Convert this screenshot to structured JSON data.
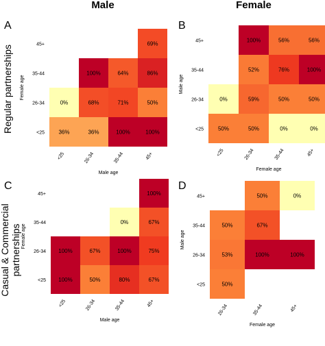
{
  "header": {
    "left": "Male",
    "right": "Female"
  },
  "row_labels": {
    "top": "Regular partnerships",
    "bottom_line1": "Casual & Commercial",
    "bottom_line2": "partnerships"
  },
  "colorscale": {
    "low": "#ffffb2",
    "mid_low": "#fd8d3c",
    "mid_high": "#f03b20",
    "high": "#bd0026"
  },
  "chart_data": [
    {
      "type": "heatmap",
      "panel": "A",
      "xlabel": "Male age",
      "ylabel": "Female age",
      "x_categories": [
        "<25",
        "26-34",
        "35-44",
        "45+"
      ],
      "y_categories": [
        "<25",
        "26-34",
        "35-44",
        "45+"
      ],
      "cells": [
        {
          "x": "<25",
          "y": "<25",
          "value": 36
        },
        {
          "x": "26-34",
          "y": "<25",
          "value": 36
        },
        {
          "x": "35-44",
          "y": "<25",
          "value": 100
        },
        {
          "x": "45+",
          "y": "<25",
          "value": 100
        },
        {
          "x": "<25",
          "y": "26-34",
          "value": 0
        },
        {
          "x": "26-34",
          "y": "26-34",
          "value": 68
        },
        {
          "x": "35-44",
          "y": "26-34",
          "value": 71
        },
        {
          "x": "45+",
          "y": "26-34",
          "value": 50
        },
        {
          "x": "26-34",
          "y": "35-44",
          "value": 100
        },
        {
          "x": "35-44",
          "y": "35-44",
          "value": 64
        },
        {
          "x": "45+",
          "y": "35-44",
          "value": 86
        },
        {
          "x": "45+",
          "y": "45+",
          "value": 69
        }
      ]
    },
    {
      "type": "heatmap",
      "panel": "B",
      "xlabel": "Female age",
      "ylabel": "Male age",
      "x_categories": [
        "<25",
        "26-34",
        "35-44",
        "45+"
      ],
      "y_categories": [
        "<25",
        "26-34",
        "35-44",
        "45+"
      ],
      "cells": [
        {
          "x": "<25",
          "y": "<25",
          "value": 50
        },
        {
          "x": "26-34",
          "y": "<25",
          "value": 50
        },
        {
          "x": "35-44",
          "y": "<25",
          "value": 0
        },
        {
          "x": "45+",
          "y": "<25",
          "value": 0
        },
        {
          "x": "<25",
          "y": "26-34",
          "value": 0
        },
        {
          "x": "26-34",
          "y": "26-34",
          "value": 59
        },
        {
          "x": "35-44",
          "y": "26-34",
          "value": 50
        },
        {
          "x": "45+",
          "y": "26-34",
          "value": 50
        },
        {
          "x": "26-34",
          "y": "35-44",
          "value": 52
        },
        {
          "x": "35-44",
          "y": "35-44",
          "value": 76
        },
        {
          "x": "45+",
          "y": "35-44",
          "value": 100
        },
        {
          "x": "26-34",
          "y": "45+",
          "value": 100
        },
        {
          "x": "35-44",
          "y": "45+",
          "value": 56
        },
        {
          "x": "45+",
          "y": "45+",
          "value": 56
        }
      ]
    },
    {
      "type": "heatmap",
      "panel": "C",
      "xlabel": "Male age",
      "ylabel": "Female age",
      "x_categories": [
        "<25",
        "26-34",
        "35-44",
        "45+"
      ],
      "y_categories": [
        "<25",
        "26-34",
        "35-44",
        "45+"
      ],
      "cells": [
        {
          "x": "<25",
          "y": "<25",
          "value": 100
        },
        {
          "x": "26-34",
          "y": "<25",
          "value": 50
        },
        {
          "x": "35-44",
          "y": "<25",
          "value": 80
        },
        {
          "x": "45+",
          "y": "<25",
          "value": 67
        },
        {
          "x": "<25",
          "y": "26-34",
          "value": 100
        },
        {
          "x": "26-34",
          "y": "26-34",
          "value": 67
        },
        {
          "x": "35-44",
          "y": "26-34",
          "value": 100
        },
        {
          "x": "45+",
          "y": "26-34",
          "value": 75
        },
        {
          "x": "35-44",
          "y": "35-44",
          "value": 0
        },
        {
          "x": "45+",
          "y": "35-44",
          "value": 67
        },
        {
          "x": "45+",
          "y": "45+",
          "value": 100
        }
      ]
    },
    {
      "type": "heatmap",
      "panel": "D",
      "xlabel": "Female age",
      "ylabel": "Male age",
      "x_categories": [
        "26-34",
        "35-44",
        "45+"
      ],
      "y_categories": [
        "<25",
        "26-34",
        "35-44",
        "45+"
      ],
      "cells": [
        {
          "x": "26-34",
          "y": "<25",
          "value": 50
        },
        {
          "x": "26-34",
          "y": "26-34",
          "value": 53
        },
        {
          "x": "35-44",
          "y": "26-34",
          "value": 100
        },
        {
          "x": "45+",
          "y": "26-34",
          "value": 100
        },
        {
          "x": "26-34",
          "y": "35-44",
          "value": 50
        },
        {
          "x": "35-44",
          "y": "35-44",
          "value": 67
        },
        {
          "x": "35-44",
          "y": "45+",
          "value": 50
        },
        {
          "x": "45+",
          "y": "45+",
          "value": 0
        }
      ]
    }
  ]
}
